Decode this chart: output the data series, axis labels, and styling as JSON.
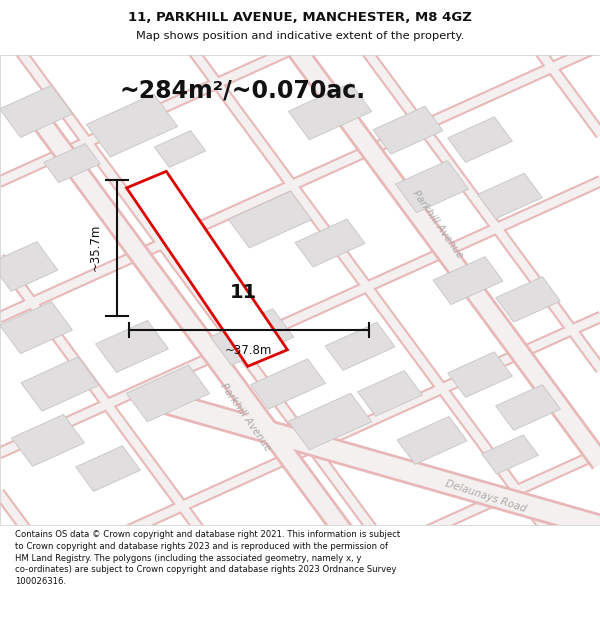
{
  "title_line1": "11, PARKHILL AVENUE, MANCHESTER, M8 4GZ",
  "title_line2": "Map shows position and indicative extent of the property.",
  "area_text": "~284m²/~0.070ac.",
  "label_width": "~37.8m",
  "label_height": "~35.7m",
  "property_number": "11",
  "footer_text": "Contains OS data © Crown copyright and database right 2021. This information is subject to Crown copyright and database rights 2023 and is reproduced with the permission of HM Land Registry. The polygons (including the associated geometry, namely x, y co-ordinates) are subject to Crown copyright and database rights 2023 Ordnance Survey 100026316.",
  "map_bg": "#f5f0f0",
  "road_outline_color": "#e8b8b8",
  "road_fill_color": "#f5f0f0",
  "building_fill": "#e0dede",
  "building_edge": "#c8c4c4",
  "property_fill": "#f8f8f8",
  "property_edge": "#dd0000",
  "dim_color": "#111111",
  "title_color": "#111111",
  "road_label_color": "#aaaaaa",
  "footer_bg": "#ffffff"
}
